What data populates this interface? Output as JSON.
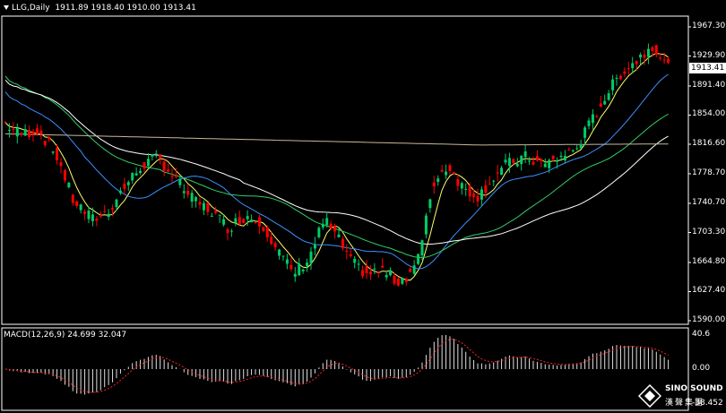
{
  "header": {
    "symbol": "LLG,Daily",
    "ohlc": "1911.89 1918.40 1910.00 1913.41"
  },
  "current_price": "1913.41",
  "macd": {
    "label": "MACD(12,26,9) 24.699 32.047",
    "ticks": [
      "40.6",
      "0.00",
      "-38.452"
    ]
  },
  "logo": {
    "line1": "SINO SOUND",
    "line2": "漢聲集團",
    "icon": "diamond-logo-icon"
  },
  "colors": {
    "up": "#00cc66",
    "down": "#ff0000",
    "grid": "#ffffff",
    "ma_fast": "#ffff66",
    "ma_blue": "#3d8eff",
    "ma_green": "#33cc66",
    "ma_white": "#ffffff",
    "ma_tan": "#c8b89a",
    "signal": "#ff2020"
  },
  "chart_data": {
    "type": "candlestick",
    "y_ticks": [
      "1967.30",
      "1929.90",
      "1891.40",
      "1854.00",
      "1816.60",
      "1778.70",
      "1740.70",
      "1703.30",
      "1664.80",
      "1627.40",
      "1590.00"
    ],
    "ylim": [
      1590,
      1967.3
    ],
    "macd_ylim": [
      -38.452,
      40.6
    ]
  }
}
